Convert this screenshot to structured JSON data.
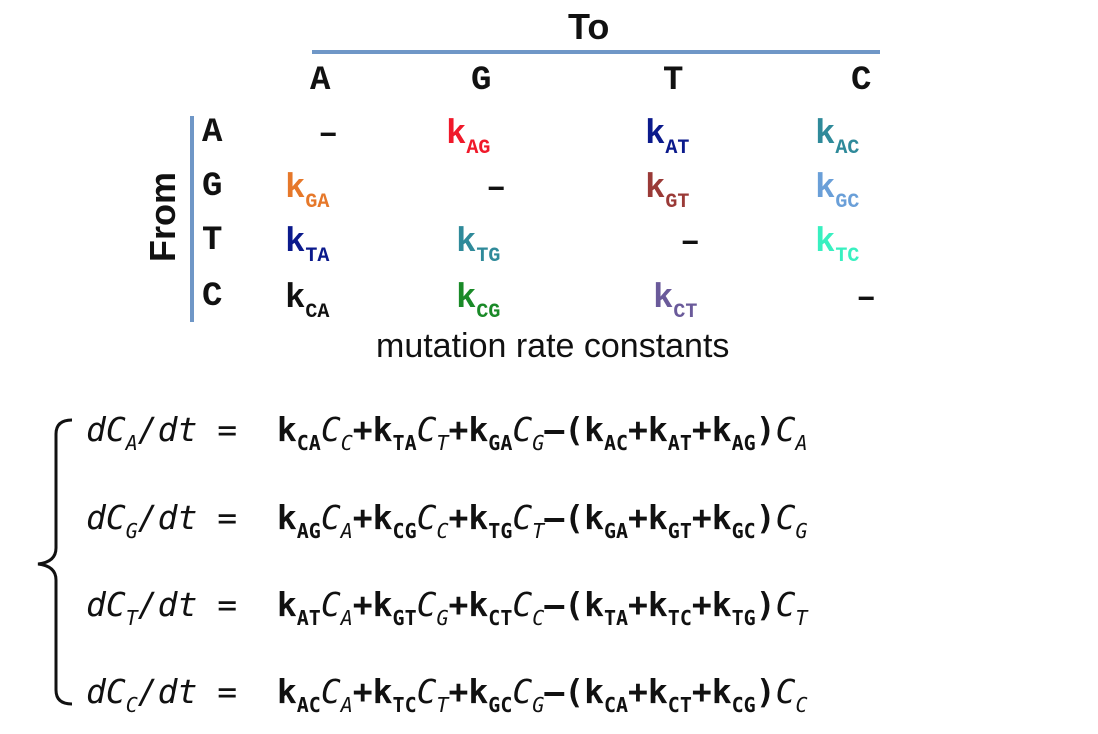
{
  "header": {
    "to_label": "To",
    "from_label": "From",
    "caption": "mutation rate constants"
  },
  "columns": [
    "A",
    "G",
    "T",
    "C"
  ],
  "rows": [
    "A",
    "G",
    "T",
    "C"
  ],
  "matrix": [
    [
      {
        "text": "–"
      },
      {
        "k": "k",
        "sub": "AG",
        "color": "#f0192a"
      },
      {
        "k": "k",
        "sub": "AT",
        "color": "#0b1a8c"
      },
      {
        "k": "k",
        "sub": "AC",
        "color": "#2f8a9a"
      }
    ],
    [
      {
        "k": "k",
        "sub": "GA",
        "color": "#e6782a"
      },
      {
        "text": "–"
      },
      {
        "k": "k",
        "sub": "GT",
        "color": "#9a3a37"
      },
      {
        "k": "k",
        "sub": "GC",
        "color": "#6a9fd8"
      }
    ],
    [
      {
        "k": "k",
        "sub": "TA",
        "color": "#0b1a8c"
      },
      {
        "k": "k",
        "sub": "TG",
        "color": "#2f8a9a"
      },
      {
        "text": "–"
      },
      {
        "k": "k",
        "sub": "TC",
        "color": "#38f0c0"
      }
    ],
    [
      {
        "k": "k",
        "sub": "CA",
        "color": "#111111"
      },
      {
        "k": "k",
        "sub": "CG",
        "color": "#1a8a28"
      },
      {
        "k": "k",
        "sub": "CT",
        "color": "#6a5a9a"
      },
      {
        "text": "–"
      }
    ]
  ],
  "equations": [
    {
      "lhs_c": "C",
      "lhs_sub": "A",
      "lhs_pre": "d",
      "lhs_post": "/dt",
      "eq": "=",
      "plus_terms": [
        {
          "k": "k",
          "ks": "CA",
          "c": "C",
          "cs": "C"
        },
        {
          "k": "k",
          "ks": "TA",
          "c": "C",
          "cs": "T"
        },
        {
          "k": "k",
          "ks": "GA",
          "c": "C",
          "cs": "G"
        }
      ],
      "minus": "–",
      "open": "(",
      "close": ")",
      "out_terms": [
        {
          "k": "k",
          "ks": "AC"
        },
        {
          "k": "k",
          "ks": "AT"
        },
        {
          "k": "k",
          "ks": "AG"
        }
      ],
      "tail_c": "C",
      "tail_sub": "A"
    },
    {
      "lhs_c": "C",
      "lhs_sub": "G",
      "lhs_pre": "d",
      "lhs_post": "/dt",
      "eq": "=",
      "plus_terms": [
        {
          "k": "k",
          "ks": "AG",
          "c": "C",
          "cs": "A"
        },
        {
          "k": "k",
          "ks": "CG",
          "c": "C",
          "cs": "C"
        },
        {
          "k": "k",
          "ks": "TG",
          "c": "C",
          "cs": "T"
        }
      ],
      "minus": "–",
      "open": "(",
      "close": ")",
      "out_terms": [
        {
          "k": "k",
          "ks": "GA"
        },
        {
          "k": "k",
          "ks": "GT"
        },
        {
          "k": "k",
          "ks": "GC"
        }
      ],
      "tail_c": "C",
      "tail_sub": "G"
    },
    {
      "lhs_c": "C",
      "lhs_sub": "T",
      "lhs_pre": "d",
      "lhs_post": "/dt",
      "eq": "=",
      "plus_terms": [
        {
          "k": "k",
          "ks": "AT",
          "c": "C",
          "cs": "A"
        },
        {
          "k": "k",
          "ks": "GT",
          "c": "C",
          "cs": "G"
        },
        {
          "k": "k",
          "ks": "CT",
          "c": "C",
          "cs": "C"
        }
      ],
      "minus": "–",
      "open": "(",
      "close": ")",
      "out_terms": [
        {
          "k": "k",
          "ks": "TA"
        },
        {
          "k": "k",
          "ks": "TC"
        },
        {
          "k": "k",
          "ks": "TG"
        }
      ],
      "tail_c": "C",
      "tail_sub": "T"
    },
    {
      "lhs_c": "C",
      "lhs_sub": "C",
      "lhs_pre": "d",
      "lhs_post": "/dt",
      "eq": "=",
      "plus_terms": [
        {
          "k": "k",
          "ks": "AC",
          "c": "C",
          "cs": "A"
        },
        {
          "k": "k",
          "ks": "TC",
          "c": "C",
          "cs": "T"
        },
        {
          "k": "k",
          "ks": "GC",
          "c": "C",
          "cs": "G"
        }
      ],
      "minus": "–",
      "open": "(",
      "close": ")",
      "out_terms": [
        {
          "k": "k",
          "ks": "CA"
        },
        {
          "k": "k",
          "ks": "CT"
        },
        {
          "k": "k",
          "ks": "CG"
        }
      ],
      "tail_c": "C",
      "tail_sub": "C"
    }
  ]
}
